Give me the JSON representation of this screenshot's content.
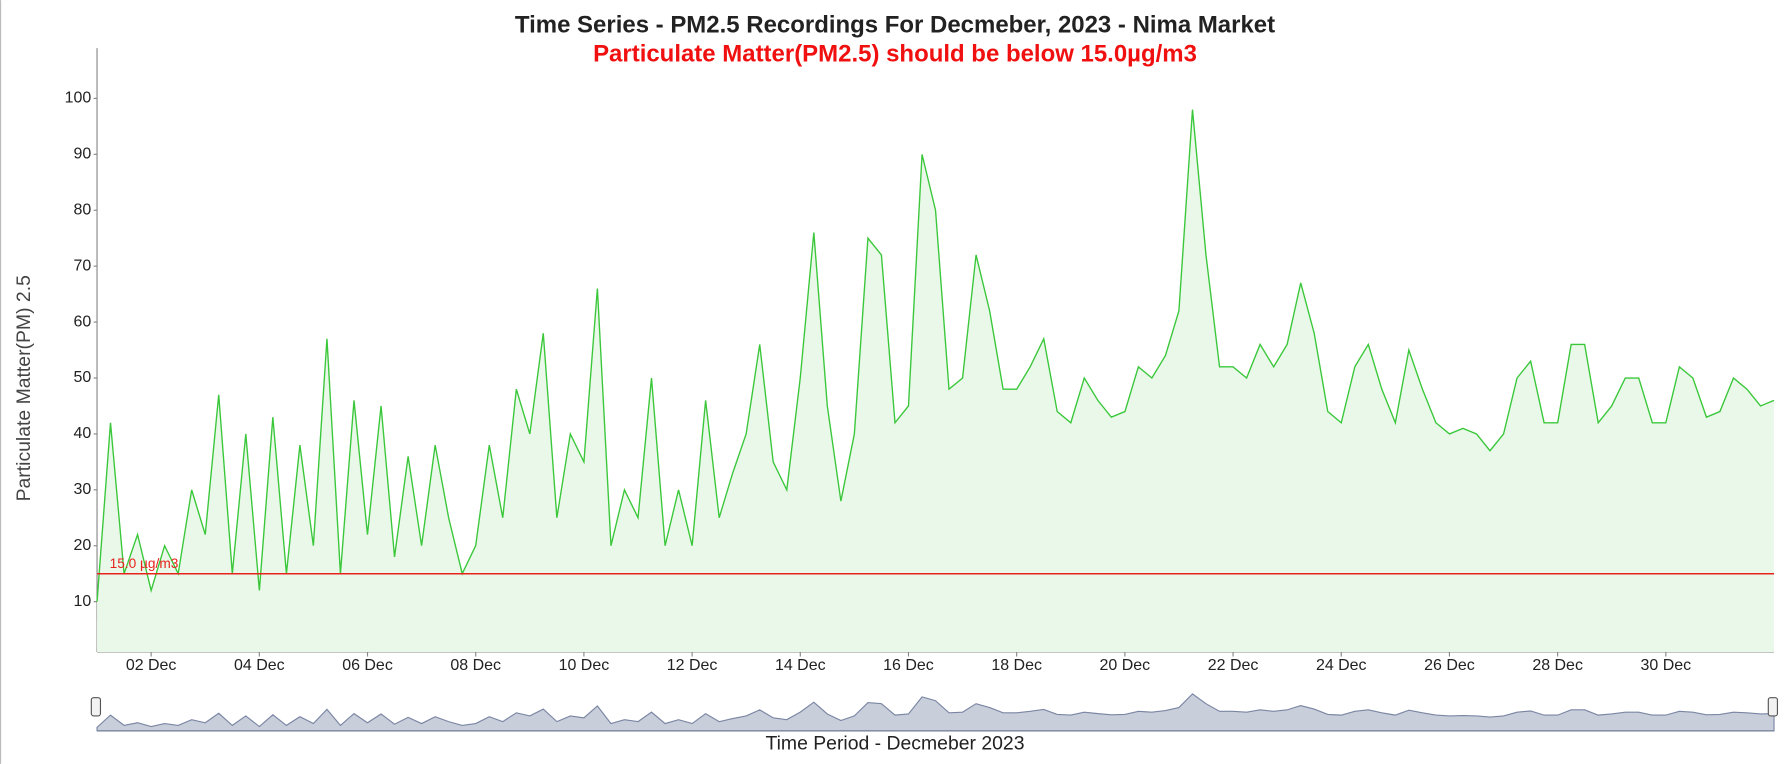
{
  "chart_data": {
    "type": "area",
    "title": "Time Series - PM2.5 Recordings For Decmeber, 2023 - Nima Market",
    "subtitle": "Particulate Matter(PM2.5) should be below 15.0µg/m3",
    "y_label": "Particulate Matter(PM) 2.5",
    "x_label": "Time Period - Decmeber 2023",
    "range_input": "30",
    "xlim": [
      1,
      32
    ],
    "ylim": [
      1,
      109
    ],
    "yticks": [
      10,
      20,
      30,
      40,
      50,
      60,
      70,
      80,
      90,
      100
    ],
    "xticks": [
      {
        "value": 2,
        "label": "02 Dec"
      },
      {
        "value": 4,
        "label": "04 Dec"
      },
      {
        "value": 6,
        "label": "06 Dec"
      },
      {
        "value": 8,
        "label": "08 Dec"
      },
      {
        "value": 10,
        "label": "10 Dec"
      },
      {
        "value": 12,
        "label": "12 Dec"
      },
      {
        "value": 14,
        "label": "14 Dec"
      },
      {
        "value": 16,
        "label": "16 Dec"
      },
      {
        "value": 18,
        "label": "18 Dec"
      },
      {
        "value": 20,
        "label": "20 Dec"
      },
      {
        "value": 22,
        "label": "22 Dec"
      },
      {
        "value": 24,
        "label": "24 Dec"
      },
      {
        "value": 26,
        "label": "26 Dec"
      },
      {
        "value": 28,
        "label": "28 Dec"
      },
      {
        "value": 30,
        "label": "30 Dec"
      }
    ],
    "threshold": {
      "value": 15,
      "label": "15.0 µg/m3",
      "color": "#e8231c"
    },
    "color": "#3ac73a",
    "fill": "#e9f8e9",
    "x": [
      1,
      1.25,
      1.5,
      1.75,
      2,
      2.25,
      2.5,
      2.75,
      3,
      3.25,
      3.5,
      3.75,
      4,
      4.25,
      4.5,
      4.75,
      5,
      5.25,
      5.5,
      5.75,
      6,
      6.25,
      6.5,
      6.75,
      7,
      7.25,
      7.5,
      7.75,
      8,
      8.25,
      8.5,
      8.75,
      9,
      9.25,
      9.5,
      9.75,
      10,
      10.25,
      10.5,
      10.75,
      11,
      11.25,
      11.5,
      11.75,
      12,
      12.25,
      12.5,
      12.75,
      13,
      13.25,
      13.5,
      13.75,
      14,
      14.25,
      14.5,
      14.75,
      15,
      15.25,
      15.5,
      15.75,
      16,
      16.25,
      16.5,
      16.75,
      17,
      17.25,
      17.5,
      17.75,
      18,
      18.25,
      18.5,
      18.75,
      19,
      19.25,
      19.5,
      19.75,
      20,
      20.25,
      20.5,
      20.75,
      21,
      21.25,
      21.5,
      21.75,
      22,
      22.25,
      22.5,
      22.75,
      23,
      23.25,
      23.5,
      23.75,
      24,
      24.25,
      24.5,
      24.75,
      25,
      25.25,
      25.5,
      25.75,
      26,
      26.25,
      26.5,
      26.75,
      27,
      27.25,
      27.5,
      27.75,
      28,
      28.25,
      28.5,
      28.75,
      29,
      29.25,
      29.5,
      29.75,
      30,
      30.25,
      30.5,
      30.75,
      31,
      31.25,
      31.5,
      31.75,
      32
    ],
    "values": [
      10,
      42,
      15,
      22,
      12,
      20,
      15,
      30,
      22,
      47,
      15,
      40,
      12,
      43,
      15,
      38,
      20,
      57,
      15,
      46,
      22,
      45,
      18,
      36,
      20,
      38,
      25,
      15,
      20,
      38,
      25,
      48,
      40,
      58,
      25,
      40,
      35,
      66,
      20,
      30,
      25,
      50,
      20,
      30,
      20,
      46,
      25,
      33,
      40,
      56,
      35,
      30,
      50,
      76,
      45,
      28,
      40,
      75,
      72,
      42,
      45,
      90,
      80,
      48,
      50,
      72,
      62,
      48,
      48,
      52,
      57,
      44,
      42,
      50,
      46,
      43,
      44,
      52,
      50,
      54,
      62,
      98,
      72,
      52,
      52,
      50,
      56,
      52,
      56,
      67,
      58,
      44,
      42,
      52,
      56,
      48,
      42,
      55,
      48,
      42,
      40,
      41,
      40,
      37,
      40,
      50,
      53,
      42,
      42,
      56,
      56,
      42,
      45,
      50,
      50,
      42,
      42,
      52,
      50,
      43,
      44,
      50,
      48,
      45,
      46
    ]
  }
}
